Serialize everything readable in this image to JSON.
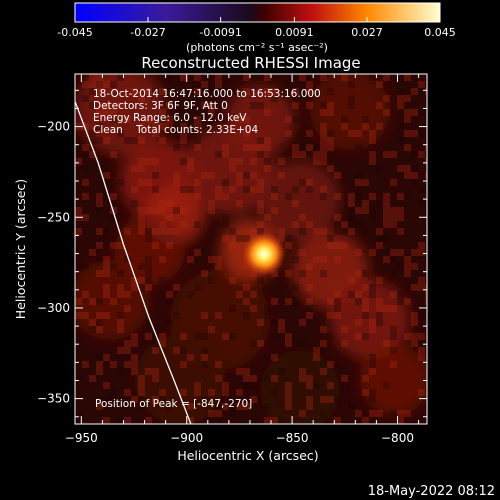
{
  "colorbar": {
    "tick_labels": [
      "-0.045",
      "-0.027",
      "-0.0091",
      "0.0091",
      "0.027",
      "0.045"
    ],
    "tick_values": [
      -0.045,
      -0.027,
      -0.0091,
      0.0091,
      0.027,
      0.045
    ],
    "unit_label": "(photons cm⁻² s⁻¹ asec⁻²)"
  },
  "chart_data": {
    "type": "heatmap",
    "title": "Reconstructed RHESSI Image",
    "xlabel": "Heliocentric X (arcsec)",
    "ylabel": "Heliocentric Y (arcsec)",
    "xlim": [
      -953,
      -786
    ],
    "ylim": [
      -364,
      -171
    ],
    "x_ticks": [
      -950,
      -900,
      -850,
      -800
    ],
    "x_tick_labels": [
      "−950",
      "−900",
      "−850",
      "−800"
    ],
    "y_ticks": [
      -200,
      -250,
      -300,
      -350
    ],
    "y_tick_labels": [
      "−200",
      "−250",
      "−300",
      "−350"
    ],
    "annotations": [
      "18-Oct-2014 16:47:16.000 to 16:53:16.000",
      "Detectors: 3F 6F 9F, Att 0",
      "Energy Range: 6.0 - 12.0 keV",
      "Clean    Total counts: 2.33E+04"
    ],
    "peak_label": "Position of Peak = [-847,-270]",
    "peak": {
      "x": -847,
      "y": -270
    },
    "color_range": [
      -0.045,
      0.045
    ],
    "limb_line": [
      [
        -955,
        -180
      ],
      [
        -942,
        -220
      ],
      [
        -930,
        -265
      ],
      [
        -918,
        -305
      ],
      [
        -906,
        -340
      ],
      [
        -898,
        -364
      ]
    ]
  },
  "footer": {
    "timestamp": "18-May-2022 08:12"
  }
}
